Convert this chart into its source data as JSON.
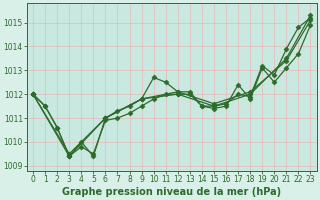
{
  "xlabel": "Graphe pression niveau de la mer (hPa)",
  "bg_color": "#d8f0e8",
  "plot_bg_color": "#c8e8e0",
  "grid_color": "#e8b8b8",
  "line_color": "#2d6b2d",
  "xlim": [
    -0.5,
    23.5
  ],
  "ylim": [
    1008.8,
    1015.8
  ],
  "yticks": [
    1009,
    1010,
    1011,
    1012,
    1013,
    1014,
    1015
  ],
  "xticks": [
    0,
    1,
    2,
    3,
    4,
    5,
    6,
    7,
    8,
    9,
    10,
    11,
    12,
    13,
    14,
    15,
    16,
    17,
    18,
    19,
    20,
    21,
    22,
    23
  ],
  "line1_x": [
    0,
    1,
    2,
    3,
    4,
    5,
    6,
    7,
    8,
    9,
    10,
    11,
    12,
    13,
    14,
    15,
    16,
    17,
    18,
    19,
    20,
    21,
    22,
    23
  ],
  "line1_y": [
    1012.0,
    1011.5,
    1010.6,
    1009.4,
    1010.0,
    1009.4,
    1011.0,
    1011.3,
    1011.5,
    1011.8,
    1012.7,
    1012.5,
    1012.1,
    1012.1,
    1011.5,
    1011.5,
    1011.6,
    1012.0,
    1011.9,
    1013.2,
    1012.8,
    1013.9,
    1014.8,
    1015.2
  ],
  "line2_x": [
    0,
    1,
    2,
    3,
    4,
    5,
    6,
    7,
    8,
    9,
    10,
    11,
    12,
    13,
    14,
    15,
    16,
    17,
    18,
    19,
    20,
    21,
    22,
    23
  ],
  "line2_y": [
    1012.0,
    1011.5,
    1010.6,
    1009.4,
    1009.8,
    1009.5,
    1010.9,
    1011.0,
    1011.2,
    1011.5,
    1011.8,
    1012.0,
    1012.0,
    1012.0,
    1011.5,
    1011.4,
    1011.5,
    1012.4,
    1011.8,
    1013.1,
    1012.5,
    1013.1,
    1013.7,
    1014.9
  ],
  "line3_x": [
    0,
    3,
    6,
    9,
    12,
    15,
    18,
    21,
    23
  ],
  "line3_y": [
    1012.0,
    1009.4,
    1011.0,
    1011.8,
    1012.0,
    1011.5,
    1012.0,
    1013.5,
    1015.3
  ],
  "line4_x": [
    0,
    3,
    6,
    9,
    12,
    15,
    18,
    21,
    23
  ],
  "line4_y": [
    1012.0,
    1009.5,
    1011.0,
    1011.8,
    1012.1,
    1011.6,
    1012.1,
    1013.4,
    1015.1
  ],
  "marker": "D",
  "markersize": 2.5,
  "linewidth": 0.9,
  "xlabel_fontsize": 7,
  "tick_fontsize": 5.5
}
